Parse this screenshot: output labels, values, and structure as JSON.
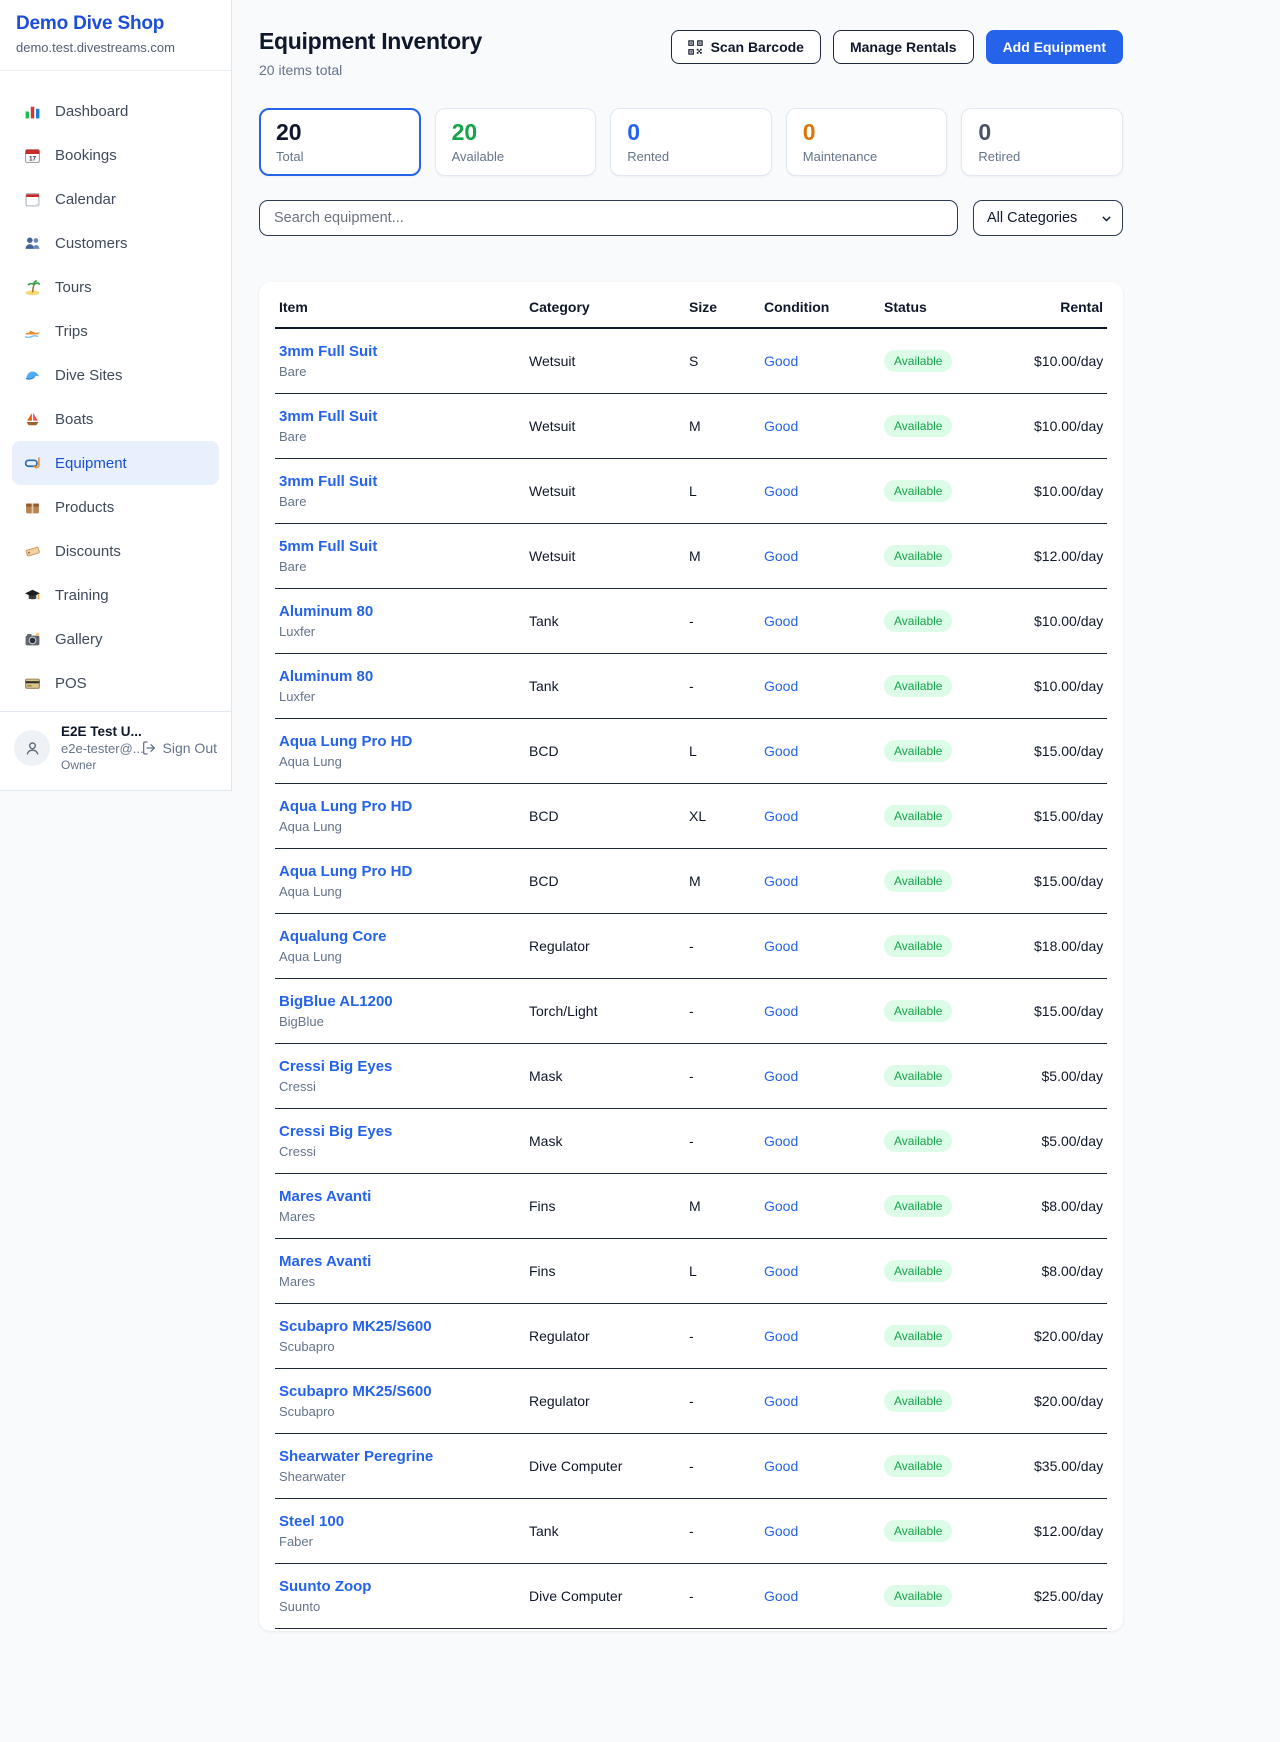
{
  "colors": {
    "accent": "#2563eb",
    "brand_title": "#1d4ed8",
    "success": "#16a34a",
    "warning": "#d97706",
    "muted": "#4b5563",
    "badge_bg": "#dcfce7"
  },
  "sidebar": {
    "title": "Demo Dive Shop",
    "domain": "demo.test.divestreams.com",
    "items": [
      {
        "icon": "bar-chart-icon",
        "label": "Dashboard",
        "active": false
      },
      {
        "icon": "calendar-date-icon",
        "label": "Bookings",
        "active": false
      },
      {
        "icon": "calendar-page-icon",
        "label": "Calendar",
        "active": false
      },
      {
        "icon": "people-icon",
        "label": "Customers",
        "active": false
      },
      {
        "icon": "palm-island-icon",
        "label": "Tours",
        "active": false
      },
      {
        "icon": "speedboat-icon",
        "label": "Trips",
        "active": false
      },
      {
        "icon": "wave-icon",
        "label": "Dive Sites",
        "active": false
      },
      {
        "icon": "sailboat-icon",
        "label": "Boats",
        "active": false
      },
      {
        "icon": "dive-mask-icon",
        "label": "Equipment",
        "active": true
      },
      {
        "icon": "package-icon",
        "label": "Products",
        "active": false
      },
      {
        "icon": "price-tag-icon",
        "label": "Discounts",
        "active": false
      },
      {
        "icon": "graduation-cap-icon",
        "label": "Training",
        "active": false
      },
      {
        "icon": "camera-icon",
        "label": "Gallery",
        "active": false
      },
      {
        "icon": "credit-card-icon",
        "label": "POS",
        "active": false
      }
    ],
    "user": {
      "name": "E2E Test U...",
      "email": "e2e-tester@...",
      "role": "Owner",
      "signout_label": "Sign Out"
    }
  },
  "header": {
    "title": "Equipment Inventory",
    "subtitle": "20 items total",
    "scan_label": "Scan Barcode",
    "manage_label": "Manage Rentals",
    "add_label": "Add Equipment"
  },
  "stats": [
    {
      "value": "20",
      "label": "Total",
      "color": "#0f172a",
      "active": true
    },
    {
      "value": "20",
      "label": "Available",
      "color": "#16a34a",
      "active": false
    },
    {
      "value": "0",
      "label": "Rented",
      "color": "#2563eb",
      "active": false
    },
    {
      "value": "0",
      "label": "Maintenance",
      "color": "#d97706",
      "active": false
    },
    {
      "value": "0",
      "label": "Retired",
      "color": "#4b5563",
      "active": false
    }
  ],
  "filters": {
    "search_placeholder": "Search equipment...",
    "category_value": "All Categories"
  },
  "table": {
    "columns": [
      "Item",
      "Category",
      "Size",
      "Condition",
      "Status",
      "Rental"
    ],
    "rows": [
      {
        "item": "3mm Full Suit",
        "brand": "Bare",
        "category": "Wetsuit",
        "size": "S",
        "condition": "Good",
        "status": "Available",
        "rental": "$10.00/day"
      },
      {
        "item": "3mm Full Suit",
        "brand": "Bare",
        "category": "Wetsuit",
        "size": "M",
        "condition": "Good",
        "status": "Available",
        "rental": "$10.00/day"
      },
      {
        "item": "3mm Full Suit",
        "brand": "Bare",
        "category": "Wetsuit",
        "size": "L",
        "condition": "Good",
        "status": "Available",
        "rental": "$10.00/day"
      },
      {
        "item": "5mm Full Suit",
        "brand": "Bare",
        "category": "Wetsuit",
        "size": "M",
        "condition": "Good",
        "status": "Available",
        "rental": "$12.00/day"
      },
      {
        "item": "Aluminum 80",
        "brand": "Luxfer",
        "category": "Tank",
        "size": "-",
        "condition": "Good",
        "status": "Available",
        "rental": "$10.00/day"
      },
      {
        "item": "Aluminum 80",
        "brand": "Luxfer",
        "category": "Tank",
        "size": "-",
        "condition": "Good",
        "status": "Available",
        "rental": "$10.00/day"
      },
      {
        "item": "Aqua Lung Pro HD",
        "brand": "Aqua Lung",
        "category": "BCD",
        "size": "L",
        "condition": "Good",
        "status": "Available",
        "rental": "$15.00/day"
      },
      {
        "item": "Aqua Lung Pro HD",
        "brand": "Aqua Lung",
        "category": "BCD",
        "size": "XL",
        "condition": "Good",
        "status": "Available",
        "rental": "$15.00/day"
      },
      {
        "item": "Aqua Lung Pro HD",
        "brand": "Aqua Lung",
        "category": "BCD",
        "size": "M",
        "condition": "Good",
        "status": "Available",
        "rental": "$15.00/day"
      },
      {
        "item": "Aqualung Core",
        "brand": "Aqua Lung",
        "category": "Regulator",
        "size": "-",
        "condition": "Good",
        "status": "Available",
        "rental": "$18.00/day"
      },
      {
        "item": "BigBlue AL1200",
        "brand": "BigBlue",
        "category": "Torch/Light",
        "size": "-",
        "condition": "Good",
        "status": "Available",
        "rental": "$15.00/day"
      },
      {
        "item": "Cressi Big Eyes",
        "brand": "Cressi",
        "category": "Mask",
        "size": "-",
        "condition": "Good",
        "status": "Available",
        "rental": "$5.00/day"
      },
      {
        "item": "Cressi Big Eyes",
        "brand": "Cressi",
        "category": "Mask",
        "size": "-",
        "condition": "Good",
        "status": "Available",
        "rental": "$5.00/day"
      },
      {
        "item": "Mares Avanti",
        "brand": "Mares",
        "category": "Fins",
        "size": "M",
        "condition": "Good",
        "status": "Available",
        "rental": "$8.00/day"
      },
      {
        "item": "Mares Avanti",
        "brand": "Mares",
        "category": "Fins",
        "size": "L",
        "condition": "Good",
        "status": "Available",
        "rental": "$8.00/day"
      },
      {
        "item": "Scubapro MK25/S600",
        "brand": "Scubapro",
        "category": "Regulator",
        "size": "-",
        "condition": "Good",
        "status": "Available",
        "rental": "$20.00/day"
      },
      {
        "item": "Scubapro MK25/S600",
        "brand": "Scubapro",
        "category": "Regulator",
        "size": "-",
        "condition": "Good",
        "status": "Available",
        "rental": "$20.00/day"
      },
      {
        "item": "Shearwater Peregrine",
        "brand": "Shearwater",
        "category": "Dive Computer",
        "size": "-",
        "condition": "Good",
        "status": "Available",
        "rental": "$35.00/day"
      },
      {
        "item": "Steel 100",
        "brand": "Faber",
        "category": "Tank",
        "size": "-",
        "condition": "Good",
        "status": "Available",
        "rental": "$12.00/day"
      },
      {
        "item": "Suunto Zoop",
        "brand": "Suunto",
        "category": "Dive Computer",
        "size": "-",
        "condition": "Good",
        "status": "Available",
        "rental": "$25.00/day"
      }
    ]
  }
}
